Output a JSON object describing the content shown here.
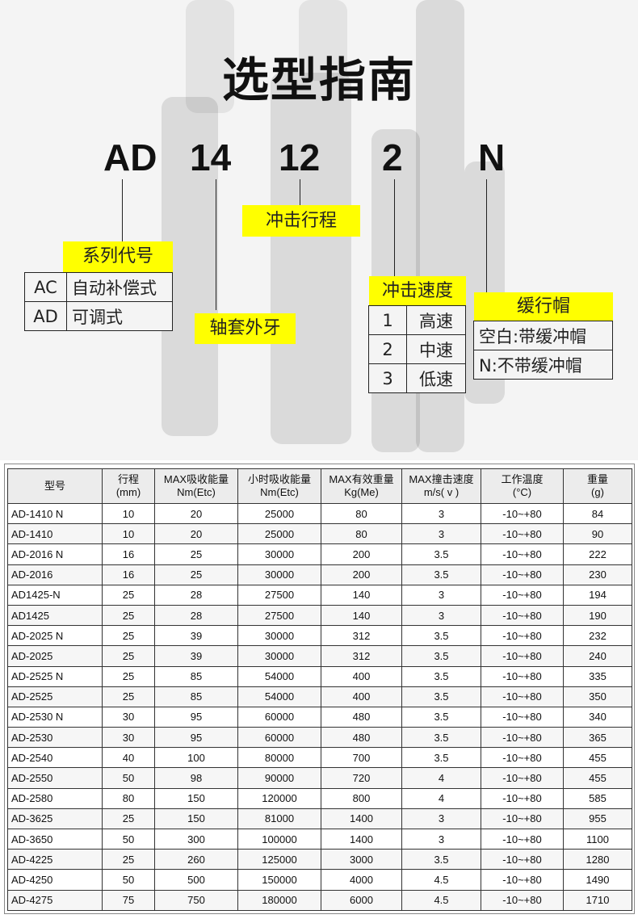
{
  "title": "选型指南",
  "codes": [
    "AD",
    "14",
    "12",
    "2",
    "N"
  ],
  "labels": {
    "series": "系列代号",
    "thread": "轴套外牙",
    "stroke": "冲击行程",
    "speed": "冲击速度",
    "cap": "缓行帽"
  },
  "series_opts": [
    {
      "code": "AC",
      "desc": "自动补偿式"
    },
    {
      "code": "AD",
      "desc": "可调式"
    }
  ],
  "speed_opts": [
    {
      "code": "1",
      "desc": "高速"
    },
    {
      "code": "2",
      "desc": "中速"
    },
    {
      "code": "3",
      "desc": "低速"
    }
  ],
  "cap_opts": [
    "空白:带缓冲帽",
    "N:不带缓冲帽"
  ],
  "colors": {
    "highlight": "#ffff00"
  },
  "table": {
    "headers": [
      [
        "型号",
        ""
      ],
      [
        "行程",
        "(mm)"
      ],
      [
        "MAX吸收能量",
        "Nm(Etc)"
      ],
      [
        "小时吸收能量",
        "Nm(Etc)"
      ],
      [
        "MAX有效重量",
        "Kg(Me)"
      ],
      [
        "MAX撞击速度",
        "m/s( v )"
      ],
      [
        "工作温度",
        "(°C)"
      ],
      [
        "重量",
        "(g)"
      ]
    ],
    "rows": [
      [
        "AD-1410 N",
        "10",
        "20",
        "25000",
        "80",
        "3",
        "-10~+80",
        "84"
      ],
      [
        "AD-1410",
        "10",
        "20",
        "25000",
        "80",
        "3",
        "-10~+80",
        "90"
      ],
      [
        "AD-2016 N",
        "16",
        "25",
        "30000",
        "200",
        "3.5",
        "-10~+80",
        "222"
      ],
      [
        "AD-2016",
        "16",
        "25",
        "30000",
        "200",
        "3.5",
        "-10~+80",
        "230"
      ],
      [
        "AD1425-N",
        "25",
        "28",
        "27500",
        "140",
        "3",
        "-10~+80",
        "194"
      ],
      [
        "AD1425",
        "25",
        "28",
        "27500",
        "140",
        "3",
        "-10~+80",
        "190"
      ],
      [
        "AD-2025 N",
        "25",
        "39",
        "30000",
        "312",
        "3.5",
        "-10~+80",
        "232"
      ],
      [
        "AD-2025",
        "25",
        "39",
        "30000",
        "312",
        "3.5",
        "-10~+80",
        "240"
      ],
      [
        "AD-2525 N",
        "25",
        "85",
        "54000",
        "400",
        "3.5",
        "-10~+80",
        "335"
      ],
      [
        "AD-2525",
        "25",
        "85",
        "54000",
        "400",
        "3.5",
        "-10~+80",
        "350"
      ],
      [
        "AD-2530 N",
        "30",
        "95",
        "60000",
        "480",
        "3.5",
        "-10~+80",
        "340"
      ],
      [
        "AD-2530",
        "30",
        "95",
        "60000",
        "480",
        "3.5",
        "-10~+80",
        "365"
      ],
      [
        "AD-2540",
        "40",
        "100",
        "80000",
        "700",
        "3.5",
        "-10~+80",
        "455"
      ],
      [
        "AD-2550",
        "50",
        "98",
        "90000",
        "720",
        "4",
        "-10~+80",
        "455"
      ],
      [
        "AD-2580",
        "80",
        "150",
        "120000",
        "800",
        "4",
        "-10~+80",
        "585"
      ],
      [
        "AD-3625",
        "25",
        "150",
        "81000",
        "1400",
        "3",
        "-10~+80",
        "955"
      ],
      [
        "AD-3650",
        "50",
        "300",
        "100000",
        "1400",
        "3",
        "-10~+80",
        "1100"
      ],
      [
        "AD-4225",
        "25",
        "260",
        "125000",
        "3000",
        "3.5",
        "-10~+80",
        "1280"
      ],
      [
        "AD-4250",
        "50",
        "500",
        "150000",
        "4000",
        "4.5",
        "-10~+80",
        "1490"
      ],
      [
        "AD-4275",
        "75",
        "750",
        "180000",
        "6000",
        "4.5",
        "-10~+80",
        "1710"
      ]
    ]
  }
}
